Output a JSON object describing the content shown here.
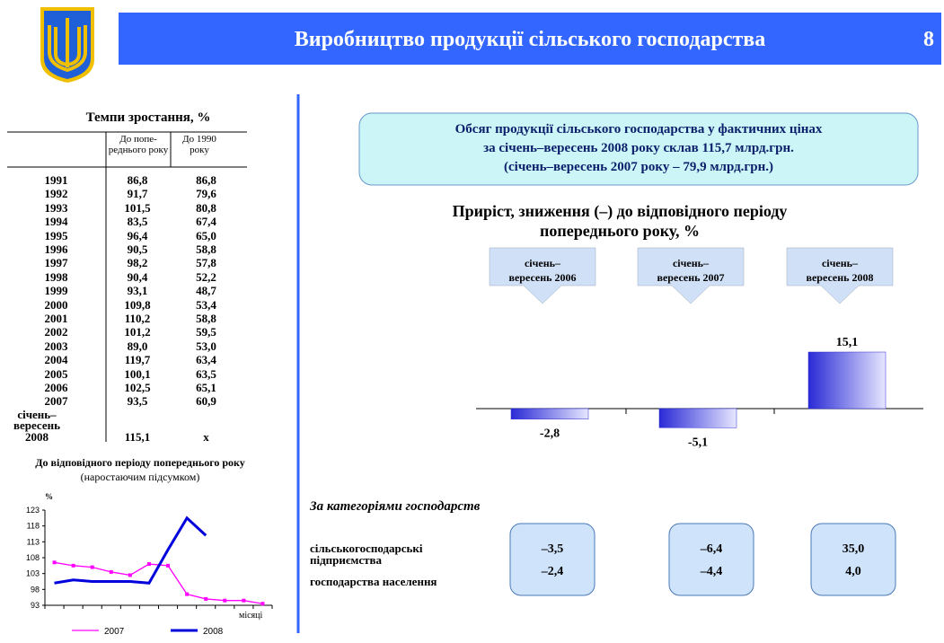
{
  "header": {
    "title": "Виробництво продукції сільського господарства",
    "page": "8"
  },
  "table": {
    "title": "Темпи зростання, %",
    "columns": [
      "До попе-реднього року",
      "До 1990 року"
    ],
    "rows": [
      [
        "1991",
        "86,8",
        "86,8"
      ],
      [
        "1992",
        "91,7",
        "79,6"
      ],
      [
        "1993",
        "101,5",
        "80,8"
      ],
      [
        "1994",
        "83,5",
        "67,4"
      ],
      [
        "1995",
        "96,4",
        "65,0"
      ],
      [
        "1996",
        "90,5",
        "58,8"
      ],
      [
        "1997",
        "98,2",
        "57,8"
      ],
      [
        "1998",
        "90,4",
        "52,2"
      ],
      [
        "1999",
        "93,1",
        "48,7"
      ],
      [
        "2000",
        "109,8",
        "53,4"
      ],
      [
        "2001",
        "110,2",
        "58,8"
      ],
      [
        "2002",
        "101,2",
        "59,5"
      ],
      [
        "2003",
        "89,0",
        "53,0"
      ],
      [
        "2004",
        "119,7",
        "63,4"
      ],
      [
        "2005",
        "100,1",
        "63,5"
      ],
      [
        "2006",
        "102,5",
        "65,1"
      ],
      [
        "2007",
        "93,5",
        "60,9"
      ],
      [
        "січень–вересень 2008",
        "115,1",
        "x"
      ]
    ]
  },
  "summary": [
    "Обсяг продукції сільського господарства у фактичних цінах",
    "за січень–вересень 2008 року склав 115,7 млрд.грн.",
    "(січень–вересень 2007 року – 79,9 млрд.грн.)"
  ],
  "chart_data": [
    {
      "type": "line",
      "title": "До відповідного періоду попереднього року",
      "subtitle": "(наростаючим підсумком)",
      "y_label": "%",
      "x_label": "місяці",
      "categories": [
        null,
        null,
        null,
        null,
        null,
        null,
        null,
        null,
        null,
        null,
        null,
        null
      ],
      "ylim": [
        93,
        123
      ],
      "yticks": [
        93,
        98,
        103,
        108,
        113,
        118,
        123
      ],
      "series": [
        {
          "name": "2007",
          "color": "#ff00ff",
          "values": [
            106.5,
            105.5,
            105,
            103.5,
            102.5,
            106,
            105.5,
            96.5,
            95,
            94.5,
            94.5,
            93.5
          ]
        },
        {
          "name": "2008",
          "color": "#0000dd",
          "values": [
            100,
            101,
            100.5,
            100.5,
            100.5,
            100,
            110.5,
            120.5,
            115,
            null,
            null,
            null
          ]
        }
      ]
    },
    {
      "type": "bar",
      "title": "Приріст, зниження (–) до відповідного періоду попереднього року, %",
      "categories": [
        "січень–вересень 2006",
        "січень–вересень 2007",
        "січень–вересень 2008"
      ],
      "values": [
        -2.8,
        -5.1,
        15.1
      ],
      "value_labels": [
        "-2,8",
        "-5,1",
        "15,1"
      ],
      "color": "#2a2ad6"
    }
  ],
  "by_category": {
    "title": "За категоріями господарств",
    "rows": [
      "сільськогосподарські підприємства",
      "господарства населення"
    ],
    "values": [
      [
        "–3,5",
        "–2,4"
      ],
      [
        "–6,4",
        "–4,4"
      ],
      [
        "35,0",
        "4,0"
      ]
    ]
  }
}
